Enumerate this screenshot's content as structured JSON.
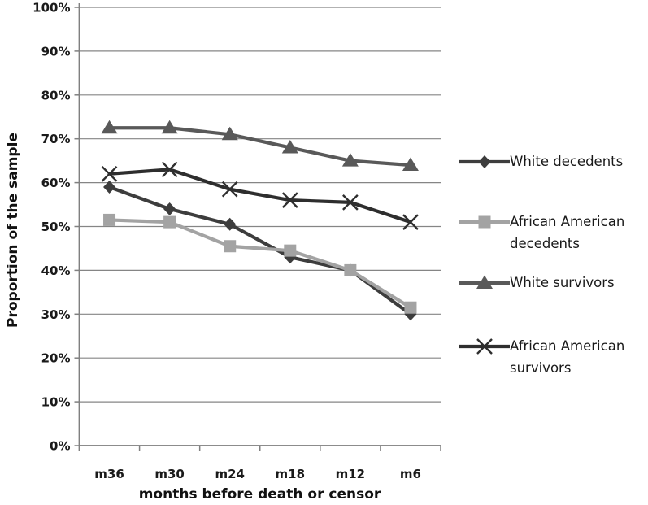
{
  "chart_data": {
    "type": "line",
    "title": "",
    "xlabel": "months before death or censor",
    "ylabel": "Proportion of the sample",
    "categories": [
      "m36",
      "m30",
      "m24",
      "m18",
      "m12",
      "m6"
    ],
    "ylim": [
      0,
      100
    ],
    "ytick_step": 10,
    "ytick_labels": [
      "0%",
      "10%",
      "20%",
      "30%",
      "40%",
      "50%",
      "60%",
      "70%",
      "80%",
      "90%",
      "100%"
    ],
    "grid": true,
    "legend_position": "right",
    "axis_color": "#808080",
    "grid_color": "#858585",
    "text_color": "#1a1a1a",
    "series": [
      {
        "name": "White decedents",
        "marker": "diamond",
        "color": "#3d3d3d",
        "values": [
          59,
          54,
          50.5,
          43,
          40,
          30
        ]
      },
      {
        "name": "African American decedents",
        "marker": "square",
        "color": "#a3a3a3",
        "values": [
          51.5,
          51,
          45.5,
          44.5,
          40,
          31.5
        ]
      },
      {
        "name": "White survivors",
        "marker": "triangle",
        "color": "#595959",
        "values": [
          72.5,
          72.5,
          71,
          68,
          65,
          64
        ]
      },
      {
        "name": "African American survivors",
        "marker": "x",
        "color": "#2e2e2e",
        "values": [
          62,
          63,
          58.5,
          56,
          55.5,
          51
        ]
      }
    ]
  }
}
